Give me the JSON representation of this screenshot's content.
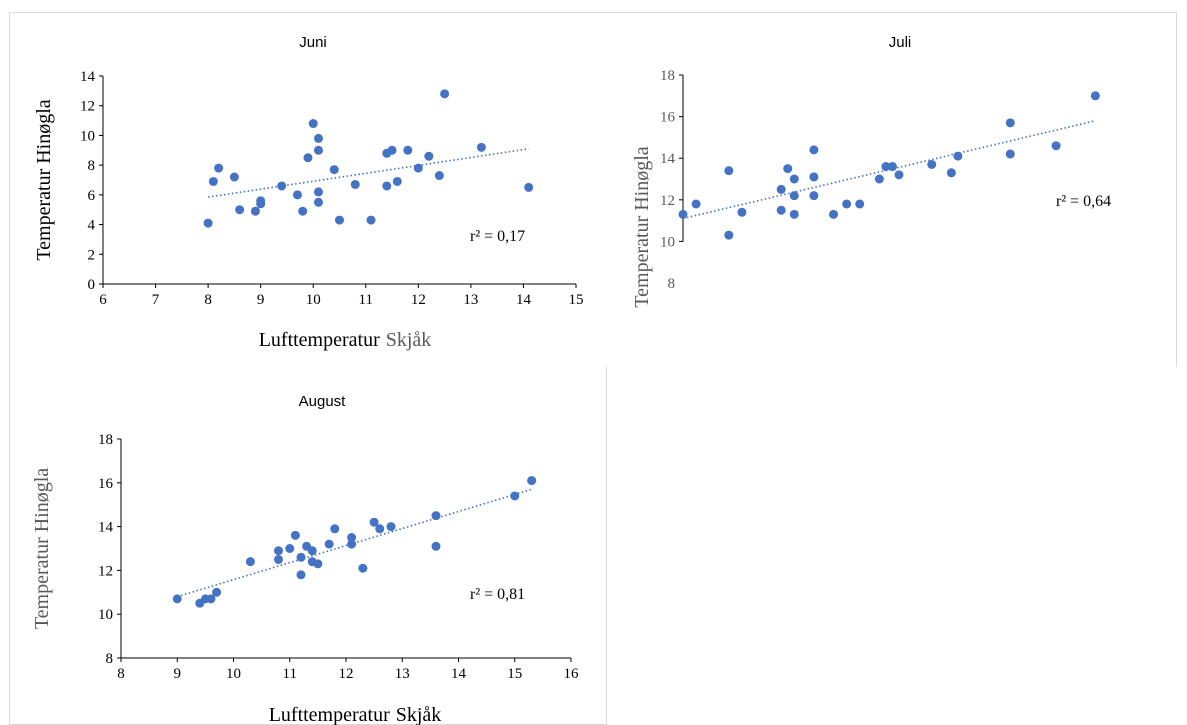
{
  "chart_data": [
    {
      "id": "juni",
      "type": "scatter",
      "title": "Juni",
      "xlabel": "Lufttemperatur",
      "xlabel_suffix": "Skjåk",
      "ylabel": "Temperatur Hinøgla",
      "xlim": [
        6,
        15
      ],
      "ylim": [
        0,
        14
      ],
      "xticks": [
        "6",
        "7",
        "8",
        "9",
        "10",
        "11",
        "12",
        "13",
        "14",
        "15"
      ],
      "yticks": [
        "0",
        "2",
        "4",
        "6",
        "8",
        "10",
        "12",
        "14"
      ],
      "annotation": "r² = 0,17",
      "trendline": {
        "x": [
          8.0,
          14.1
        ],
        "y": [
          5.85,
          9.1
        ]
      },
      "marker_color": "#4472c4",
      "points": [
        {
          "x": 8.0,
          "y": 4.1
        },
        {
          "x": 8.1,
          "y": 6.9
        },
        {
          "x": 8.2,
          "y": 7.8
        },
        {
          "x": 8.5,
          "y": 7.2
        },
        {
          "x": 8.6,
          "y": 5.0
        },
        {
          "x": 8.9,
          "y": 4.9
        },
        {
          "x": 9.0,
          "y": 5.6
        },
        {
          "x": 9.0,
          "y": 5.4
        },
        {
          "x": 9.4,
          "y": 6.6
        },
        {
          "x": 9.7,
          "y": 6.0
        },
        {
          "x": 9.8,
          "y": 4.9
        },
        {
          "x": 9.9,
          "y": 8.5
        },
        {
          "x": 10.0,
          "y": 10.8
        },
        {
          "x": 10.1,
          "y": 9.8
        },
        {
          "x": 10.1,
          "y": 9.0
        },
        {
          "x": 10.1,
          "y": 6.2
        },
        {
          "x": 10.1,
          "y": 5.5
        },
        {
          "x": 10.4,
          "y": 7.7
        },
        {
          "x": 10.5,
          "y": 4.3
        },
        {
          "x": 10.8,
          "y": 6.7
        },
        {
          "x": 11.1,
          "y": 4.3
        },
        {
          "x": 11.4,
          "y": 8.8
        },
        {
          "x": 11.4,
          "y": 6.6
        },
        {
          "x": 11.5,
          "y": 9.0
        },
        {
          "x": 11.6,
          "y": 6.9
        },
        {
          "x": 11.8,
          "y": 9.0
        },
        {
          "x": 12.0,
          "y": 7.8
        },
        {
          "x": 12.2,
          "y": 8.6
        },
        {
          "x": 12.4,
          "y": 7.3
        },
        {
          "x": 12.5,
          "y": 12.8
        },
        {
          "x": 13.2,
          "y": 9.2
        },
        {
          "x": 14.1,
          "y": 6.5
        }
      ]
    },
    {
      "id": "juli",
      "type": "scatter",
      "title": "Juli",
      "xlabel": "",
      "ylabel": "Temperatur Hinøgla",
      "xlim": [
        10,
        16.6
      ],
      "ylim": [
        8,
        18
      ],
      "xticks": [],
      "yticks": [
        "8",
        "10",
        "12",
        "14",
        "16",
        "18"
      ],
      "annotation": "r² = 0,64",
      "trendline": {
        "x": [
          10.0,
          16.3
        ],
        "y": [
          11.1,
          15.8
        ]
      },
      "marker_color": "#4472c4",
      "points": [
        {
          "x": 10.0,
          "y": 11.3
        },
        {
          "x": 10.2,
          "y": 11.8
        },
        {
          "x": 10.7,
          "y": 13.4
        },
        {
          "x": 10.7,
          "y": 10.3
        },
        {
          "x": 10.9,
          "y": 11.4
        },
        {
          "x": 11.5,
          "y": 12.5
        },
        {
          "x": 11.5,
          "y": 11.5
        },
        {
          "x": 11.6,
          "y": 13.5
        },
        {
          "x": 11.7,
          "y": 13.0
        },
        {
          "x": 11.7,
          "y": 12.2
        },
        {
          "x": 11.7,
          "y": 11.3
        },
        {
          "x": 12.0,
          "y": 14.4
        },
        {
          "x": 12.0,
          "y": 13.1
        },
        {
          "x": 12.0,
          "y": 12.2
        },
        {
          "x": 12.3,
          "y": 11.3
        },
        {
          "x": 12.5,
          "y": 11.8
        },
        {
          "x": 12.7,
          "y": 11.8
        },
        {
          "x": 13.0,
          "y": 13.0
        },
        {
          "x": 13.1,
          "y": 13.6
        },
        {
          "x": 13.2,
          "y": 13.6
        },
        {
          "x": 13.3,
          "y": 13.2
        },
        {
          "x": 13.8,
          "y": 13.7
        },
        {
          "x": 14.1,
          "y": 13.3
        },
        {
          "x": 14.2,
          "y": 14.1
        },
        {
          "x": 15.0,
          "y": 15.7
        },
        {
          "x": 15.0,
          "y": 14.2
        },
        {
          "x": 15.7,
          "y": 14.6
        },
        {
          "x": 16.3,
          "y": 17.0
        }
      ]
    },
    {
      "id": "august",
      "type": "scatter",
      "title": "August",
      "xlabel": "Lufttemperatur",
      "xlabel_suffix": "Skjåk",
      "ylabel": "Temperatur Hinøgla",
      "xlim": [
        8,
        16
      ],
      "ylim": [
        8,
        18
      ],
      "xticks": [
        "8",
        "9",
        "10",
        "11",
        "12",
        "13",
        "14",
        "15",
        "16"
      ],
      "yticks": [
        "8",
        "10",
        "12",
        "14",
        "16",
        "18"
      ],
      "annotation": "r² = 0,81",
      "trendline": {
        "x": [
          9.0,
          15.3
        ],
        "y": [
          10.8,
          15.7
        ]
      },
      "marker_color": "#4472c4",
      "points": [
        {
          "x": 9.0,
          "y": 10.7
        },
        {
          "x": 9.4,
          "y": 10.5
        },
        {
          "x": 9.5,
          "y": 10.7
        },
        {
          "x": 9.6,
          "y": 10.7
        },
        {
          "x": 9.7,
          "y": 11.0
        },
        {
          "x": 10.3,
          "y": 12.4
        },
        {
          "x": 10.8,
          "y": 12.9
        },
        {
          "x": 10.8,
          "y": 12.5
        },
        {
          "x": 11.0,
          "y": 13.0
        },
        {
          "x": 11.1,
          "y": 13.6
        },
        {
          "x": 11.2,
          "y": 12.6
        },
        {
          "x": 11.2,
          "y": 11.8
        },
        {
          "x": 11.3,
          "y": 13.1
        },
        {
          "x": 11.4,
          "y": 12.9
        },
        {
          "x": 11.4,
          "y": 12.4
        },
        {
          "x": 11.5,
          "y": 12.3
        },
        {
          "x": 11.7,
          "y": 13.2
        },
        {
          "x": 11.8,
          "y": 13.9
        },
        {
          "x": 12.1,
          "y": 13.5
        },
        {
          "x": 12.1,
          "y": 13.2
        },
        {
          "x": 12.3,
          "y": 12.1
        },
        {
          "x": 12.5,
          "y": 14.2
        },
        {
          "x": 12.6,
          "y": 13.9
        },
        {
          "x": 12.8,
          "y": 14.0
        },
        {
          "x": 13.6,
          "y": 14.5
        },
        {
          "x": 13.6,
          "y": 13.1
        },
        {
          "x": 15.0,
          "y": 15.4
        },
        {
          "x": 15.3,
          "y": 16.1
        }
      ]
    }
  ]
}
